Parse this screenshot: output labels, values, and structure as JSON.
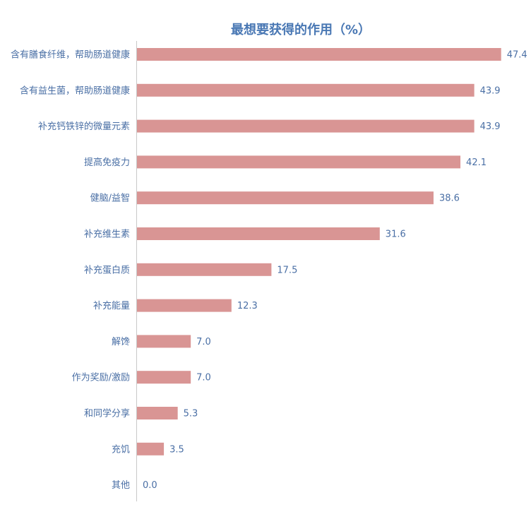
{
  "chart_data": {
    "type": "bar",
    "orientation": "horizontal",
    "title": "最想要获得的作用（%）",
    "categories": [
      "含有膳食纤维，帮助肠道健康",
      "含有益生菌，帮助肠道健康",
      "补充钙铁锌的微量元素",
      "提高免疫力",
      "健脑/益智",
      "补充维生素",
      "补充蛋白质",
      "补充能量",
      "解馋",
      "作为奖励/激励",
      "和同学分享",
      "充饥",
      "其他"
    ],
    "values": [
      47.4,
      43.9,
      43.9,
      42.1,
      38.6,
      31.6,
      17.5,
      12.3,
      7.0,
      7.0,
      5.3,
      3.5,
      0.0
    ],
    "value_labels": [
      "47.4",
      "43.9",
      "43.9",
      "42.1",
      "38.6",
      "31.6",
      "17.5",
      "12.3",
      "7.0",
      "7.0",
      "5.3",
      "3.5",
      "0.0"
    ],
    "xlim": [
      0,
      50
    ],
    "grid": false,
    "legend": false,
    "bar_color": "#d99594",
    "label_color": "#4a6fa5",
    "title_color": "#4a78b4"
  }
}
